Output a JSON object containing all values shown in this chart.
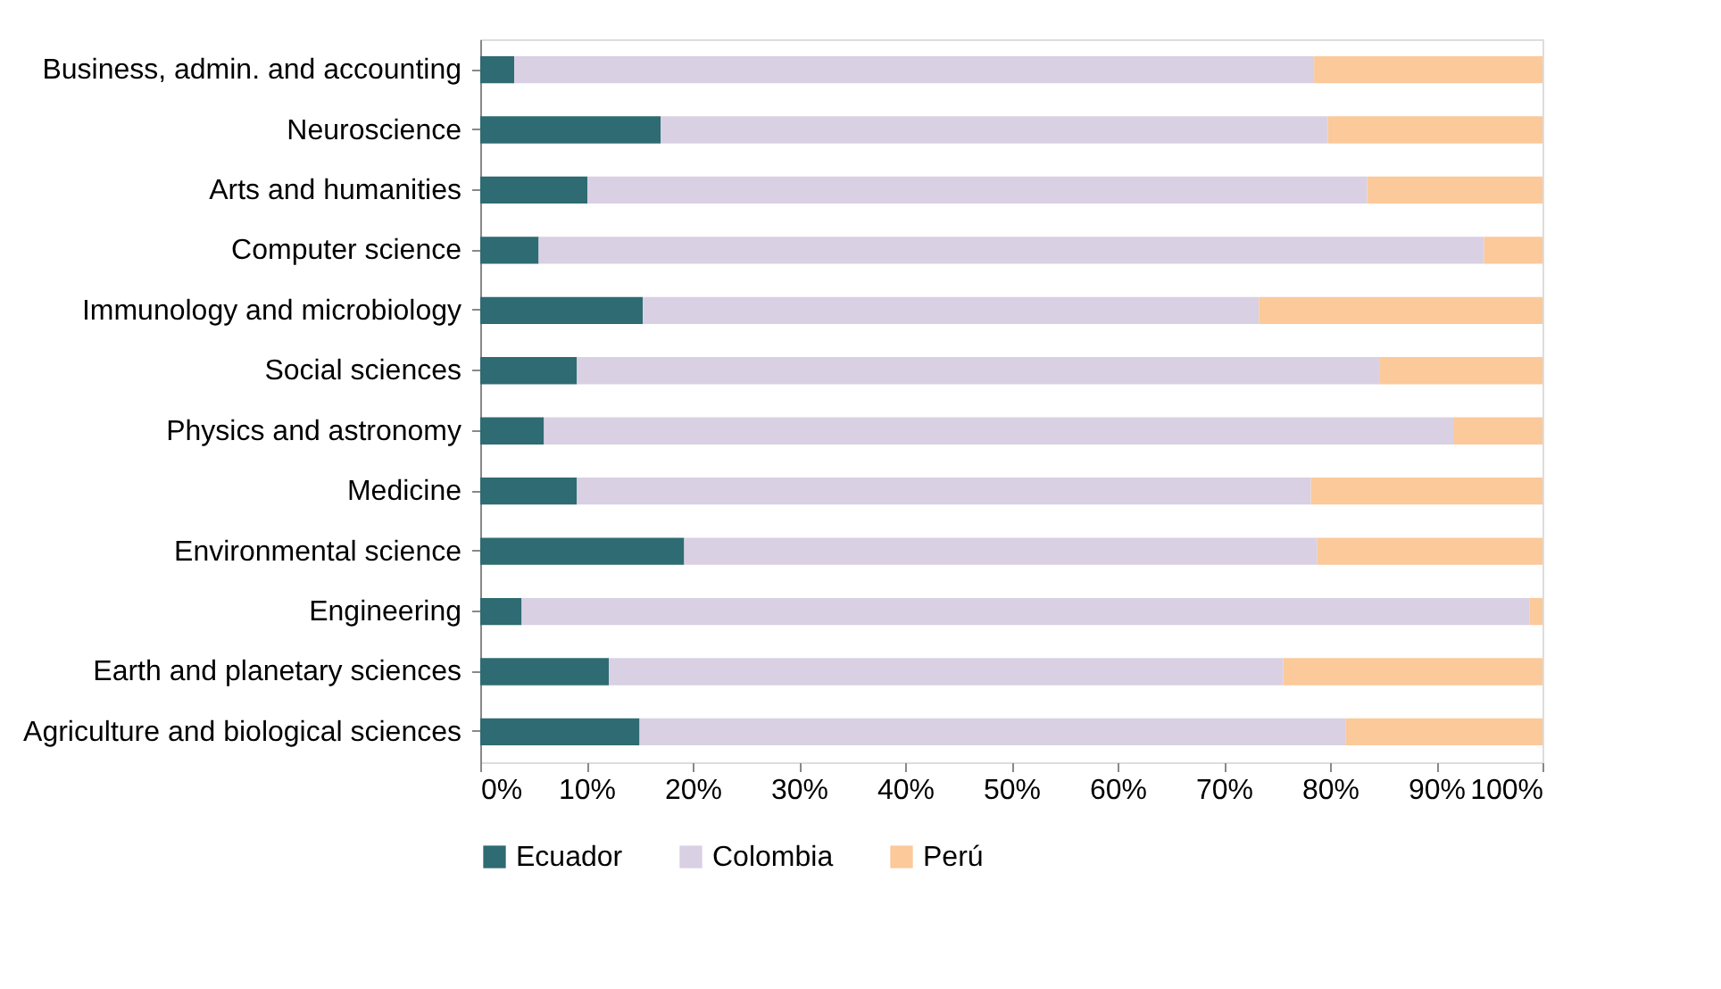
{
  "chart_data": {
    "type": "bar",
    "orientation": "horizontal",
    "stacked": true,
    "legend": "bottom",
    "grid": false,
    "categories": [
      "Business, admin. and accounting",
      "Neuroscience",
      "Arts and humanities",
      "Computer science",
      "Immunology and microbiology",
      "Social sciences",
      "Physics and astronomy",
      "Medicine",
      "Environmental science",
      "Engineering",
      "Earth and planetary sciences",
      "Agriculture and biological sciences"
    ],
    "series": [
      {
        "name": "Ecuador",
        "color": "#2e6b72",
        "values": [
          3.2,
          17.0,
          10.1,
          5.5,
          15.3,
          9.1,
          6.0,
          9.1,
          19.2,
          3.9,
          12.1,
          15.0
        ]
      },
      {
        "name": "Colombia",
        "color": "#d9d0e3",
        "values": [
          75.3,
          62.8,
          73.4,
          89.0,
          58.0,
          75.6,
          85.6,
          69.1,
          59.6,
          94.9,
          63.5,
          66.5
        ]
      },
      {
        "name": "Perú",
        "color": "#fbc99a",
        "values": [
          21.5,
          20.2,
          16.5,
          5.5,
          26.7,
          15.3,
          8.4,
          21.8,
          21.2,
          1.2,
          24.4,
          18.5
        ]
      }
    ],
    "xlim": [
      0,
      100
    ],
    "xticks": [
      {
        "value": 0,
        "label": "0%"
      },
      {
        "value": 10,
        "label": "10%"
      },
      {
        "value": 20,
        "label": "20%"
      },
      {
        "value": 30,
        "label": "30%"
      },
      {
        "value": 40,
        "label": "40%"
      },
      {
        "value": 50,
        "label": "50%"
      },
      {
        "value": 60,
        "label": "60%"
      },
      {
        "value": 70,
        "label": "70%"
      },
      {
        "value": 80,
        "label": "80%"
      },
      {
        "value": 90,
        "label": "90%"
      },
      {
        "value": 100,
        "label": "100%"
      }
    ]
  }
}
